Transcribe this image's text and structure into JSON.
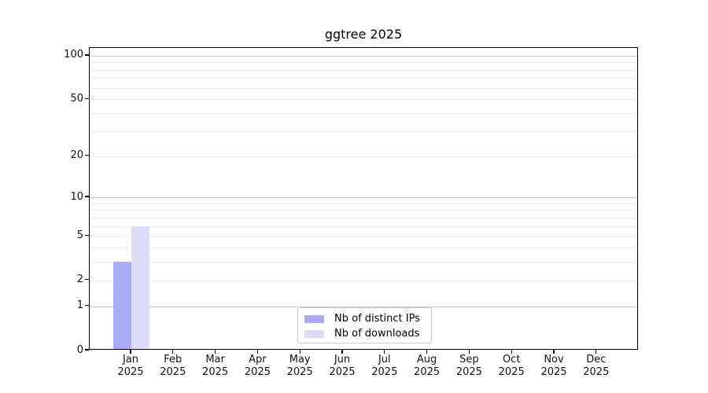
{
  "window": {
    "background": "#ffffff"
  },
  "chart_data": {
    "type": "bar",
    "title": "ggtree 2025",
    "categories": [
      {
        "month": "Jan",
        "year": "2025"
      },
      {
        "month": "Feb",
        "year": "2025"
      },
      {
        "month": "Mar",
        "year": "2025"
      },
      {
        "month": "Apr",
        "year": "2025"
      },
      {
        "month": "May",
        "year": "2025"
      },
      {
        "month": "Jun",
        "year": "2025"
      },
      {
        "month": "Jul",
        "year": "2025"
      },
      {
        "month": "Aug",
        "year": "2025"
      },
      {
        "month": "Sep",
        "year": "2025"
      },
      {
        "month": "Oct",
        "year": "2025"
      },
      {
        "month": "Nov",
        "year": "2025"
      },
      {
        "month": "Dec",
        "year": "2025"
      }
    ],
    "series": [
      {
        "name": "Nb of distinct IPs",
        "color": "#aaaaf6",
        "values": [
          3,
          0,
          0,
          0,
          0,
          0,
          0,
          0,
          0,
          0,
          0,
          0
        ]
      },
      {
        "name": "Nb of downloads",
        "color": "#dcdcf9",
        "values": [
          6,
          0,
          0,
          0,
          0,
          0,
          0,
          0,
          0,
          0,
          0,
          0
        ]
      }
    ],
    "xlabel": "",
    "ylabel": "",
    "yaxis": {
      "scale": "log1p",
      "ticks": [
        0,
        1,
        2,
        5,
        10,
        20,
        50,
        100
      ],
      "max": 113,
      "major_gridlines": [
        1,
        10,
        100
      ],
      "minor_gridlines": [
        2,
        3,
        4,
        5,
        6,
        7,
        8,
        9,
        20,
        30,
        40,
        50,
        60,
        70,
        80,
        90
      ]
    },
    "legend": {
      "position": "bottom-center",
      "items": [
        "Nb of distinct IPs",
        "Nb of downloads"
      ]
    },
    "grid": true
  },
  "colors": {
    "axis": "#000000",
    "major_grid": "#c6c6c6",
    "minor_grid": "#ebebeb",
    "tick_text": "#111111",
    "legend_border": "#c9c9c9"
  }
}
